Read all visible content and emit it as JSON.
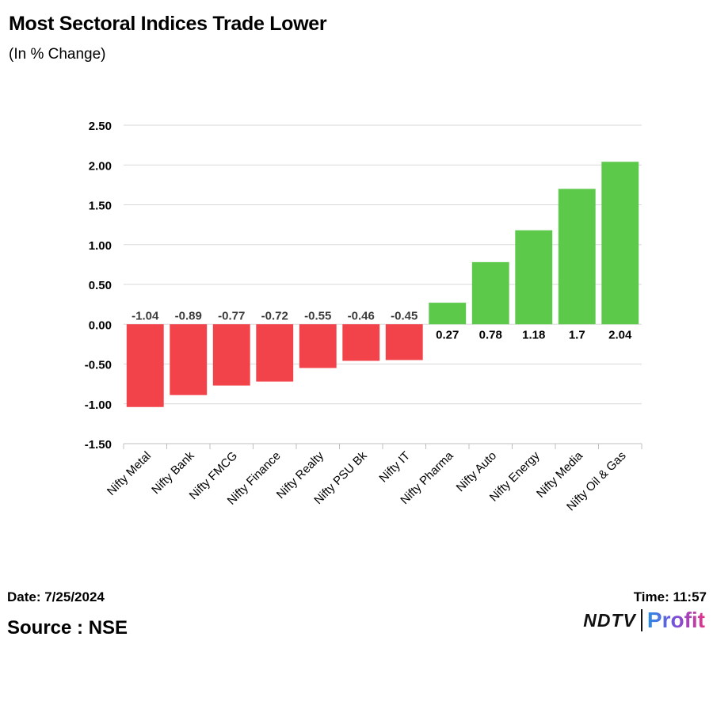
{
  "chart_data": {
    "type": "bar",
    "title": "Most Sectoral Indices Trade Lower",
    "subtitle": "(In % Change)",
    "categories": [
      "Nifty Metal",
      "Nifty Bank",
      "Nifty FMCG",
      "Nifty Finance",
      "Nifty Realty",
      "Nifty PSU Bk",
      "Nifty IT",
      "Nifty Pharma",
      "Nifty Auto",
      "Nifty Energy",
      "Nifty Media",
      "Nifty Oil & Gas"
    ],
    "values": [
      -1.04,
      -0.89,
      -0.77,
      -0.72,
      -0.55,
      -0.46,
      -0.45,
      0.27,
      0.78,
      1.18,
      1.7,
      2.04
    ],
    "value_labels": [
      "-1.04",
      "-0.89",
      "-0.77",
      "-0.72",
      "-0.55",
      "-0.46",
      "-0.45",
      "0.27",
      "0.78",
      "1.18",
      "1.7",
      "2.04"
    ],
    "yticks": [
      "2.50",
      "2.00",
      "1.50",
      "1.00",
      "0.50",
      "0.00",
      "-0.50",
      "-1.00",
      "-1.50"
    ],
    "ytick_values": [
      2.5,
      2.0,
      1.5,
      1.0,
      0.5,
      0.0,
      -0.5,
      -1.0,
      -1.5
    ],
    "ylim": [
      -1.5,
      2.5
    ],
    "grid": true,
    "colors": {
      "positive": "#5cc94a",
      "negative": "#f2434a",
      "grid": "#d9d9d9"
    }
  },
  "footer": {
    "date": "Date: 7/25/2024",
    "time": "Time: 11:57",
    "source": "Source : NSE"
  },
  "logo": {
    "ndtv": "NDTV",
    "profit": "Profit"
  }
}
